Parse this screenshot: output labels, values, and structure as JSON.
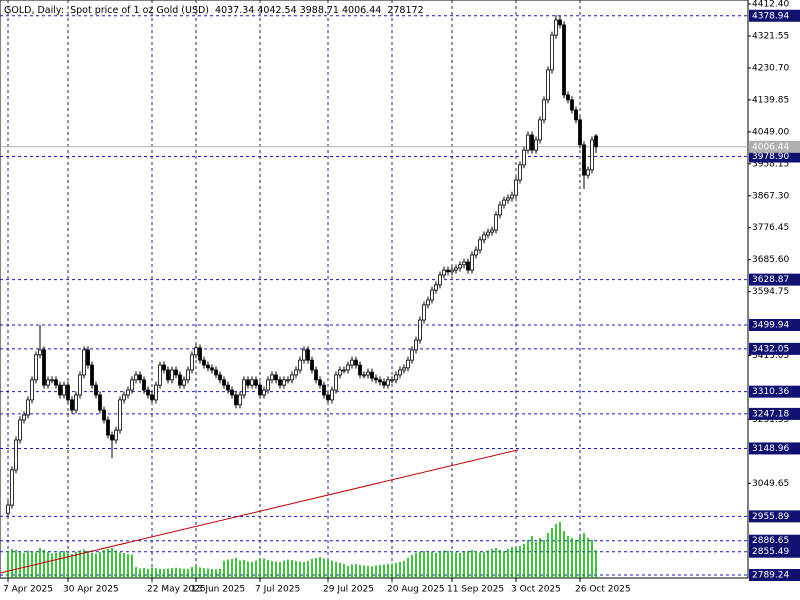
{
  "chart_data": {
    "type": "candlestick",
    "symbol": "GOLD, Daily:",
    "description": "Spot price of 1 oz Gold (USD)",
    "open": [
      2965,
      2988,
      3088,
      3173,
      3230,
      3244,
      3287,
      3344,
      3415,
      3429,
      3329,
      3344,
      3344,
      3329,
      3301,
      3329,
      3287,
      3258,
      3301,
      3358,
      3429,
      3386,
      3329,
      3301,
      3258,
      3230,
      3187,
      3173,
      3201,
      3287,
      3301,
      3315,
      3344,
      3358,
      3344,
      3315,
      3301,
      3287,
      3329,
      3386,
      3372,
      3344,
      3372,
      3358,
      3329,
      3344,
      3372,
      3415,
      3435,
      3400,
      3386,
      3378,
      3372,
      3358,
      3344,
      3329,
      3315,
      3301,
      3273,
      3301,
      3344,
      3329,
      3344,
      3329,
      3301,
      3315,
      3344,
      3358,
      3344,
      3329,
      3344,
      3344,
      3358,
      3372,
      3400,
      3429,
      3400,
      3372,
      3344,
      3329,
      3301,
      3287,
      3315,
      3358,
      3372,
      3372,
      3386,
      3400,
      3386,
      3358,
      3358,
      3366,
      3349,
      3344,
      3338,
      3329,
      3344,
      3344,
      3358,
      3372,
      3378,
      3400,
      3429,
      3457,
      3514,
      3557,
      3571,
      3599,
      3614,
      3642,
      3656,
      3651,
      3656,
      3662,
      3671,
      3679,
      3656,
      3699,
      3713,
      3742,
      3756,
      3764,
      3770,
      3813,
      3841,
      3855,
      3861,
      3869,
      3912,
      3955,
      3997,
      4040,
      3997,
      4026,
      4083,
      4140,
      4225,
      4324,
      4367,
      4353,
      4154,
      4140,
      4111,
      4083,
      4012,
      3926,
      3941,
      4037.34
    ],
    "high": [
      3000,
      3098,
      3183,
      3240,
      3254,
      3297,
      3354,
      3425,
      3500,
      3439,
      3354,
      3354,
      3354,
      3339,
      3339,
      3339,
      3297,
      3311,
      3368,
      3439,
      3439,
      3396,
      3339,
      3311,
      3268,
      3240,
      3197,
      3211,
      3297,
      3311,
      3325,
      3354,
      3368,
      3368,
      3354,
      3325,
      3311,
      3339,
      3396,
      3396,
      3382,
      3382,
      3382,
      3368,
      3354,
      3382,
      3425,
      3445,
      3445,
      3410,
      3396,
      3388,
      3382,
      3368,
      3354,
      3339,
      3325,
      3311,
      3311,
      3354,
      3354,
      3354,
      3354,
      3339,
      3325,
      3354,
      3368,
      3368,
      3354,
      3354,
      3354,
      3368,
      3382,
      3410,
      3439,
      3439,
      3410,
      3382,
      3354,
      3339,
      3311,
      3325,
      3368,
      3382,
      3382,
      3396,
      3410,
      3410,
      3396,
      3368,
      3376,
      3376,
      3359,
      3354,
      3348,
      3354,
      3354,
      3368,
      3382,
      3388,
      3410,
      3439,
      3467,
      3524,
      3567,
      3581,
      3609,
      3624,
      3652,
      3666,
      3666,
      3666,
      3672,
      3681,
      3689,
      3689,
      3709,
      3723,
      3752,
      3766,
      3774,
      3780,
      3823,
      3851,
      3865,
      3871,
      3879,
      3922,
      3965,
      4007,
      4050,
      4050,
      4036,
      4093,
      4150,
      4235,
      4334,
      4381,
      4379,
      4363,
      4164,
      4150,
      4121,
      4093,
      4022,
      3951,
      4036,
      4042.54
    ],
    "low": [
      2956,
      2978,
      3078,
      3163,
      3220,
      3234,
      3277,
      3334,
      3405,
      3319,
      3319,
      3334,
      3319,
      3291,
      3291,
      3277,
      3248,
      3248,
      3291,
      3348,
      3376,
      3319,
      3291,
      3248,
      3220,
      3177,
      3121,
      3163,
      3191,
      3277,
      3291,
      3305,
      3334,
      3334,
      3305,
      3291,
      3277,
      3277,
      3319,
      3362,
      3334,
      3334,
      3348,
      3319,
      3319,
      3334,
      3362,
      3405,
      3390,
      3376,
      3368,
      3362,
      3348,
      3334,
      3319,
      3305,
      3291,
      3263,
      3263,
      3291,
      3319,
      3319,
      3319,
      3291,
      3291,
      3305,
      3334,
      3334,
      3319,
      3319,
      3334,
      3334,
      3348,
      3362,
      3390,
      3390,
      3362,
      3334,
      3319,
      3291,
      3277,
      3277,
      3305,
      3348,
      3362,
      3362,
      3376,
      3376,
      3348,
      3348,
      3348,
      3339,
      3334,
      3328,
      3319,
      3319,
      3334,
      3334,
      3348,
      3362,
      3368,
      3390,
      3419,
      3447,
      3504,
      3547,
      3561,
      3589,
      3604,
      3632,
      3641,
      3641,
      3646,
      3652,
      3661,
      3646,
      3646,
      3689,
      3703,
      3732,
      3746,
      3754,
      3760,
      3803,
      3831,
      3845,
      3851,
      3859,
      3902,
      3945,
      3987,
      3987,
      3987,
      4016,
      4073,
      4130,
      4215,
      4314,
      4343,
      4144,
      4130,
      4101,
      4073,
      4002,
      3886,
      3916,
      3931,
      3988.71
    ],
    "close": [
      2988,
      3088,
      3173,
      3230,
      3244,
      3287,
      3344,
      3415,
      3429,
      3329,
      3344,
      3344,
      3329,
      3301,
      3329,
      3287,
      3258,
      3301,
      3358,
      3429,
      3386,
      3329,
      3301,
      3258,
      3230,
      3187,
      3173,
      3201,
      3287,
      3301,
      3315,
      3344,
      3358,
      3344,
      3315,
      3301,
      3287,
      3329,
      3386,
      3372,
      3344,
      3372,
      3358,
      3329,
      3344,
      3372,
      3415,
      3435,
      3400,
      3386,
      3378,
      3372,
      3358,
      3344,
      3329,
      3315,
      3301,
      3273,
      3301,
      3344,
      3329,
      3344,
      3329,
      3301,
      3315,
      3344,
      3358,
      3344,
      3329,
      3344,
      3344,
      3358,
      3372,
      3400,
      3429,
      3400,
      3372,
      3344,
      3329,
      3301,
      3287,
      3315,
      3358,
      3372,
      3372,
      3386,
      3400,
      3386,
      3358,
      3358,
      3366,
      3349,
      3344,
      3338,
      3329,
      3344,
      3344,
      3358,
      3372,
      3378,
      3400,
      3429,
      3457,
      3514,
      3557,
      3571,
      3599,
      3614,
      3642,
      3656,
      3651,
      3656,
      3662,
      3671,
      3679,
      3656,
      3699,
      3713,
      3742,
      3756,
      3764,
      3770,
      3813,
      3841,
      3855,
      3861,
      3869,
      3912,
      3955,
      3997,
      4040,
      3997,
      4026,
      4083,
      4140,
      4225,
      4324,
      4367,
      4353,
      4154,
      4140,
      4111,
      4083,
      4012,
      3926,
      3941,
      4026,
      4006.44
    ],
    "volume": [
      270000,
      290000,
      280000,
      260000,
      250000,
      275000,
      265000,
      255000,
      300000,
      280000,
      260000,
      245000,
      250000,
      265000,
      270000,
      255000,
      240000,
      260000,
      275000,
      285000,
      270000,
      250000,
      245000,
      260000,
      280000,
      290000,
      300000,
      275000,
      255000,
      250000,
      240000,
      235000,
      110000,
      95000,
      100000,
      90000,
      105000,
      98000,
      92000,
      88000,
      95000,
      100000,
      102000,
      97000,
      93000,
      90000,
      110000,
      120000,
      105000,
      98000,
      95000,
      90000,
      88000,
      92000,
      170000,
      185000,
      190000,
      200000,
      175000,
      180000,
      165000,
      160000,
      175000,
      190000,
      195000,
      180000,
      170000,
      165000,
      160000,
      175000,
      185000,
      180000,
      170000,
      165000,
      160000,
      170000,
      190000,
      200000,
      210000,
      195000,
      180000,
      175000,
      160000,
      150000,
      140000,
      120000,
      135000,
      140000,
      130000,
      125000,
      120000,
      115000,
      125000,
      130000,
      135000,
      140000,
      145000,
      150000,
      160000,
      170000,
      200000,
      230000,
      250000,
      260000,
      270000,
      255000,
      265000,
      250000,
      260000,
      275000,
      270000,
      265000,
      255000,
      250000,
      260000,
      270000,
      280000,
      265000,
      255000,
      260000,
      275000,
      290000,
      300000,
      280000,
      270000,
      290000,
      310000,
      300000,
      320000,
      340000,
      380000,
      420000,
      360000,
      400000,
      380000,
      450000,
      500000,
      540000,
      560000,
      470000,
      420000,
      400000,
      380000,
      410000,
      450000,
      400000,
      380000,
      278172
    ],
    "volume_color": "#00b000",
    "volume_ylim": [
      0,
      600000
    ],
    "ylim": [
      2789.24,
      4412.4
    ],
    "yticks": [
      {
        "value": 4412.4,
        "label": "4412.40"
      },
      4321.55,
      {
        "value": 4230.7,
        "label": "4230.70"
      },
      4139.85,
      {
        "value": 4049,
        "label": "4049.00"
      },
      3958.15,
      {
        "value": 3867.3,
        "label": "3867.30"
      },
      3776.45,
      {
        "value": 3685.6,
        "label": "3685.60"
      },
      3594.75,
      3413.05,
      3231.35,
      3049.65
    ],
    "xticks": [
      {
        "value": 0,
        "label": "7 Apr 2025"
      },
      {
        "value": 15,
        "label": "30 Apr 2025"
      },
      {
        "value": 36,
        "label": "22 May 2025"
      },
      {
        "value": 47,
        "label": "13 Jun 2025"
      },
      {
        "value": 63,
        "label": "7 Jul 2025"
      },
      {
        "value": 80,
        "label": "29 Jul 2025"
      },
      {
        "value": 96,
        "label": "20 Aug 2025"
      },
      {
        "value": 111,
        "label": "11 Sep 2025"
      },
      {
        "value": 127,
        "label": "3 Oct 2025"
      },
      {
        "value": 143,
        "label": "26 Oct 2025"
      }
    ],
    "levels": [
      4378.94,
      {
        "value": 3978.9,
        "label": "3978.90"
      },
      3628.87,
      3499.94,
      3432.05,
      3310.36,
      3247.18,
      3148.96,
      2955.89,
      2886.65,
      2855.49,
      2789.24
    ],
    "level_color": "#1818c8",
    "trendline": {
      "x": [
        -2,
        127.5
      ],
      "values": [
        2795,
        3145
      ],
      "color": "#c00000"
    },
    "grid": true
  }
}
